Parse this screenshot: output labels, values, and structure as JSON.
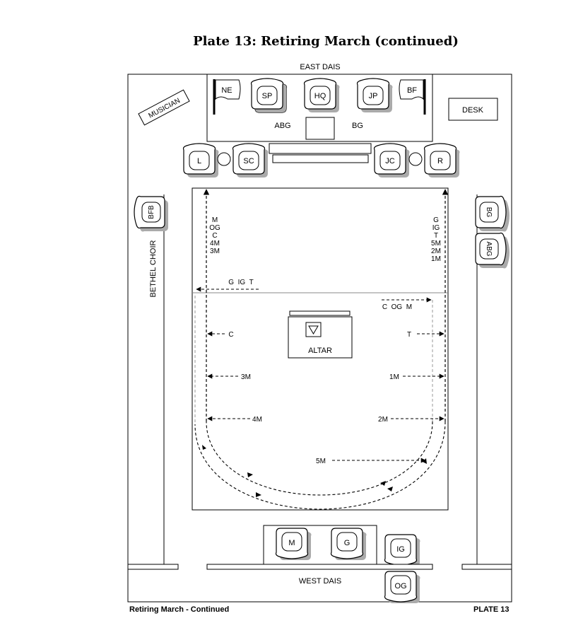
{
  "title": "Plate 13: Retiring March (continued)",
  "east_dais": "EAST DAIS",
  "west_dais": "WEST DAIS",
  "desk": "DESK",
  "musician": "MUSICIAN",
  "bethel_choir": "BETHEL CHOIR",
  "altar": "ALTAR",
  "flags": {
    "ne": "NE",
    "bf": "BF"
  },
  "chairs": {
    "sp": "SP",
    "hq": "HQ",
    "jp": "JP",
    "l": "L",
    "sc": "SC",
    "jc": "JC",
    "r": "R",
    "bfb": "BFB",
    "bg": "BG",
    "abg": "ABG",
    "m": "M",
    "g": "G",
    "ig": "IG",
    "og": "OG"
  },
  "dais_labels": {
    "abg": "ABG",
    "bg": "BG"
  },
  "left_column_stack": [
    "M",
    "OG",
    "C",
    "4M",
    "3M"
  ],
  "right_column_stack": [
    "G",
    "IG",
    "T",
    "5M",
    "2M",
    "1M"
  ],
  "paths": {
    "g_ig_t": "G  IG  T",
    "c_og_m": "C  OG  M",
    "c": "C",
    "t": "T",
    "m3": "3M",
    "m1": "1M",
    "m4": "4M",
    "m2": "2M",
    "m5": "5M"
  },
  "footer": {
    "left": "Retiring March - Continued",
    "right": "PLATE 13"
  }
}
